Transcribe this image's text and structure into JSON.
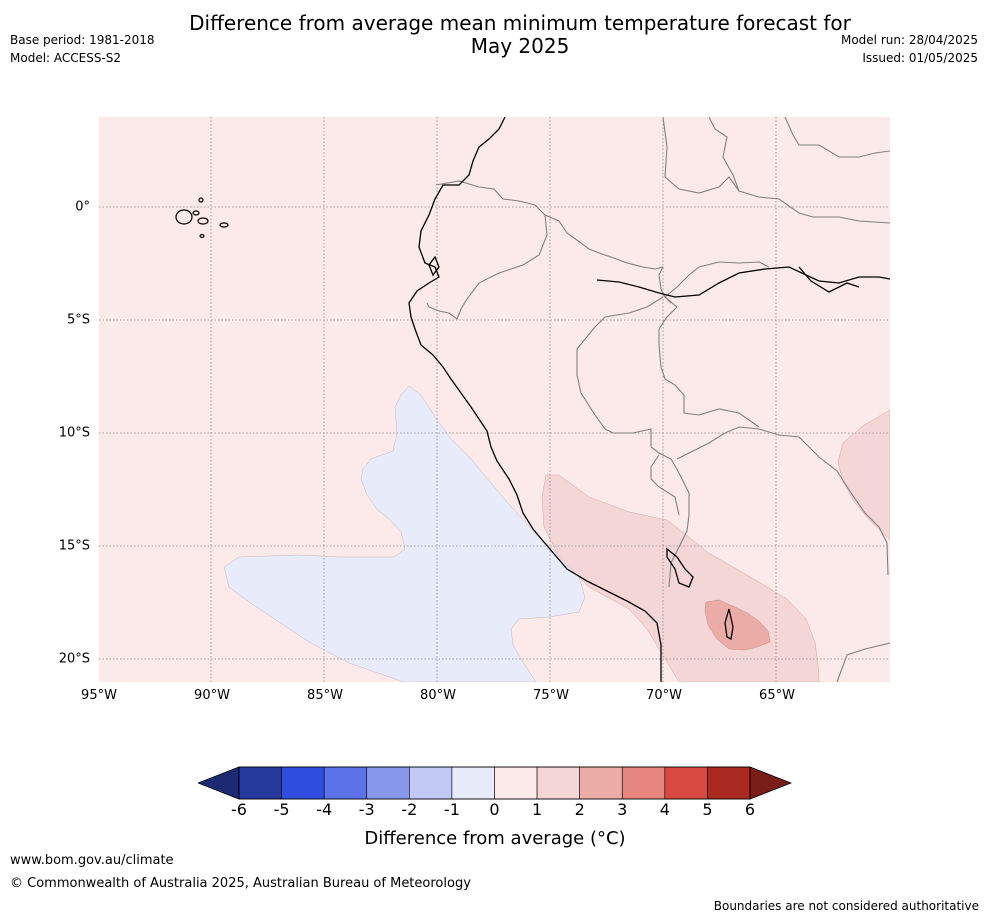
{
  "title_line1": "Difference from average mean minimum temperature forecast for",
  "title_line2": "May 2025",
  "meta_left": {
    "base_period": "Base period: 1981-2018",
    "model": "Model: ACCESS-S2"
  },
  "meta_right": {
    "model_run": "Model run: 28/04/2025",
    "issued": "Issued: 01/05/2025"
  },
  "map": {
    "lat_labels": [
      "0°",
      "5°S",
      "10°S",
      "15°S",
      "20°S"
    ],
    "lon_labels": [
      "95°W",
      "90°W",
      "85°W",
      "80°W",
      "75°W",
      "70°W",
      "65°W"
    ],
    "background_category": "0 to 1",
    "anomaly_regions": [
      {
        "name": "coastal-pacific",
        "category": "-1 to 0",
        "color": "#e8ecfa"
      },
      {
        "name": "andes-altiplano",
        "category": "1 to 2",
        "color": "#f3d6d5"
      },
      {
        "name": "bolivia-core",
        "category": "2 to 3",
        "color": "#ebaca7"
      },
      {
        "name": "east-edge",
        "category": "1 to 2",
        "color": "#f3d6d5"
      }
    ]
  },
  "colorbar": {
    "ticks": [
      "-6",
      "-5",
      "-4",
      "-3",
      "-2",
      "-1",
      "0",
      "1",
      "2",
      "3",
      "4",
      "5",
      "6"
    ],
    "colors": [
      "#26399c",
      "#2f4ee0",
      "#5c72e8",
      "#8797ec",
      "#c2c9f4",
      "#e8ecfa",
      "#fbeae9",
      "#f3d6d5",
      "#ebaca7",
      "#e7867e",
      "#d84a3f",
      "#aa2a22"
    ],
    "under_color": "#1c2a73",
    "over_color": "#7a1d18",
    "label": "Difference from average (°C)"
  },
  "footer": {
    "url": "www.bom.gov.au/climate",
    "copyright": "© Commonwealth of Australia 2025, Australian Bureau of Meteorology",
    "disclaimer": "Boundaries are not considered authoritative"
  }
}
